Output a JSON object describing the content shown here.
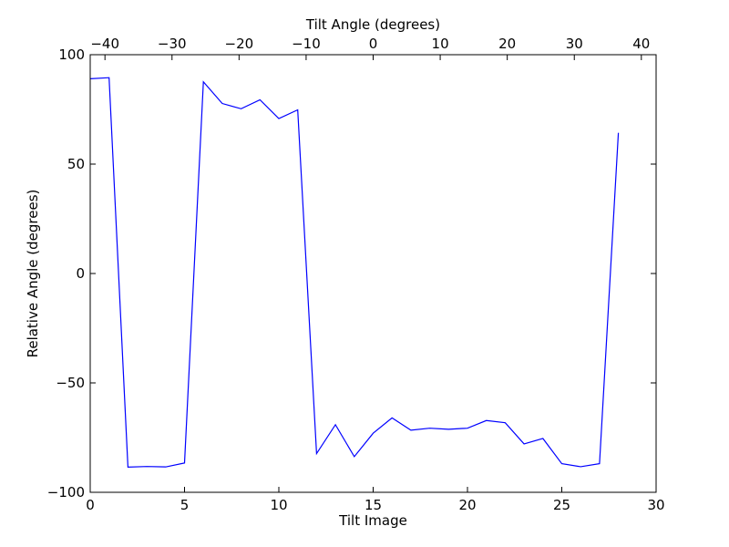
{
  "chart_data": {
    "type": "line",
    "title": "",
    "xlabel": "Tilt Image",
    "ylabel": "Relative Angle (degrees)",
    "top_xlabel": "Tilt Angle (degrees)",
    "xlim": [
      0,
      30
    ],
    "ylim": [
      -100,
      100
    ],
    "top_xlim": [
      -42.2,
      42.2
    ],
    "x_ticks": [
      0,
      5,
      10,
      15,
      20,
      25,
      30
    ],
    "x_tick_labels": [
      "0",
      "5",
      "10",
      "15",
      "20",
      "25",
      "30"
    ],
    "y_ticks": [
      -100,
      -50,
      0,
      50,
      100
    ],
    "y_tick_labels": [
      "−100",
      "−50",
      "0",
      "50",
      "100"
    ],
    "top_x_ticks": [
      -40,
      -30,
      -20,
      -10,
      0,
      10,
      20,
      30,
      40
    ],
    "top_x_tick_labels": [
      "−40",
      "−30",
      "−20",
      "−10",
      "0",
      "10",
      "20",
      "30",
      "40"
    ],
    "grid": false,
    "legend": "none",
    "series": [
      {
        "color": "#0000ff",
        "x": [
          0,
          1,
          2,
          3,
          4,
          5,
          6,
          7,
          8,
          9,
          10,
          11,
          12,
          13,
          14,
          15,
          16,
          17,
          18,
          19,
          20,
          21,
          22,
          23,
          24,
          25,
          26,
          27,
          28
        ],
        "y": [
          89.0,
          89.5,
          -88.5,
          -88.2,
          -88.4,
          -86.6,
          87.6,
          77.7,
          75.3,
          79.4,
          70.8,
          74.8,
          -82.3,
          -69.1,
          -83.7,
          -73.0,
          -66.0,
          -71.6,
          -70.7,
          -71.2,
          -70.7,
          -67.2,
          -68.2,
          -77.9,
          -75.4,
          -86.9,
          -88.3,
          -86.9,
          64.3
        ]
      }
    ]
  }
}
